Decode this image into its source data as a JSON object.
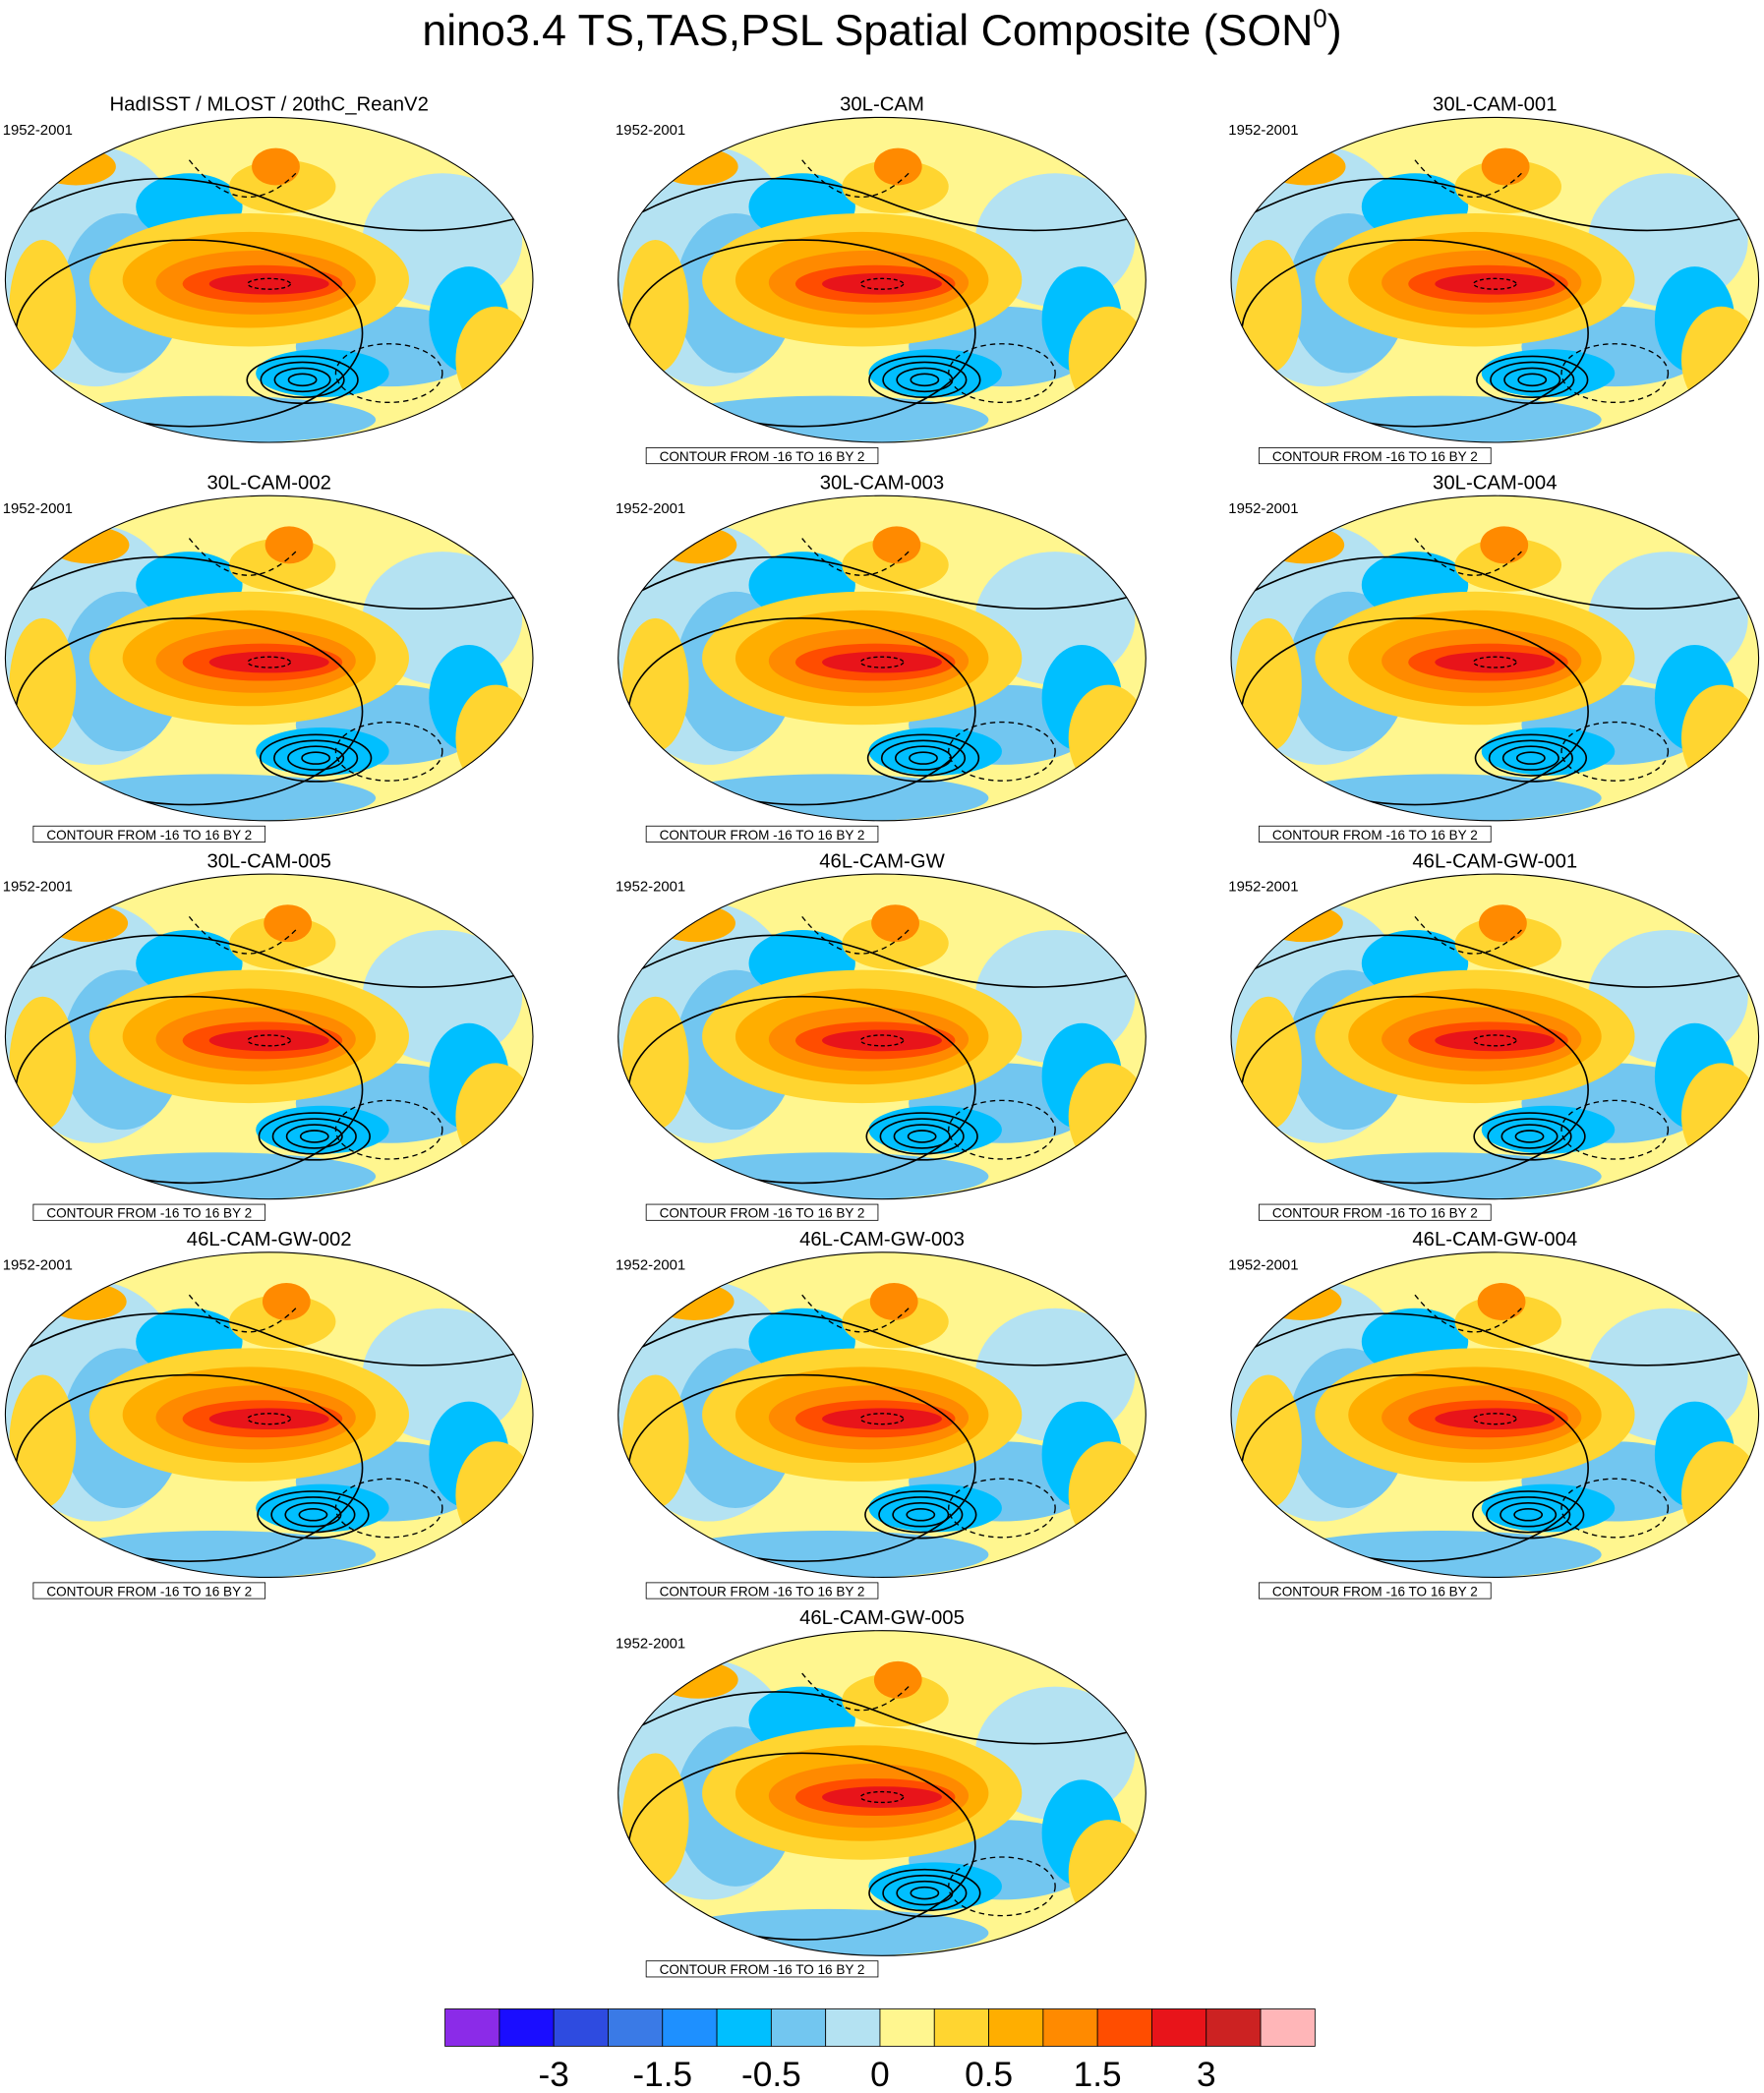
{
  "title": "nino3.4 TS,TAS,PSL Spatial Composite (SON",
  "title_superscript": "0",
  "title_end": ")",
  "panels": [
    {
      "title": "HadISST / MLOST / 20thC_ReanV2",
      "period": "1952-2001"
    },
    {
      "title": "30L-CAM",
      "period": "1952-2001",
      "contour_note": "CONTOUR FROM -16 TO 16 BY 2"
    },
    {
      "title": "30L-CAM-001",
      "period": "1952-2001",
      "contour_note": "CONTOUR FROM -16 TO 16 BY 2"
    },
    {
      "title": "30L-CAM-002",
      "period": "1952-2001",
      "contour_note": "CONTOUR FROM -16 TO 16 BY 2"
    },
    {
      "title": "30L-CAM-003",
      "period": "1952-2001",
      "contour_note": "CONTOUR FROM -16 TO 16 BY 2"
    },
    {
      "title": "30L-CAM-004",
      "period": "1952-2001",
      "contour_note": "CONTOUR FROM -16 TO 16 BY 2"
    },
    {
      "title": "30L-CAM-005",
      "period": "1952-2001",
      "contour_note": "CONTOUR FROM -16 TO 16 BY 2"
    },
    {
      "title": "46L-CAM-GW",
      "period": "1952-2001",
      "contour_note": "CONTOUR FROM -16 TO 16 BY 2"
    },
    {
      "title": "46L-CAM-GW-001",
      "period": "1952-2001",
      "contour_note": "CONTOUR FROM -16 TO 16 BY 2"
    },
    {
      "title": "46L-CAM-GW-002",
      "period": "1952-2001",
      "contour_note": "CONTOUR FROM -16 TO 16 BY 2"
    },
    {
      "title": "46L-CAM-GW-003",
      "period": "1952-2001",
      "contour_note": "CONTOUR FROM -16 TO 16 BY 2"
    },
    {
      "title": "46L-CAM-GW-004",
      "period": "1952-2001",
      "contour_note": "CONTOUR FROM -16 TO 16 BY 2"
    },
    {
      "title": "46L-CAM-GW-005",
      "period": "1952-2001",
      "contour_note": "CONTOUR FROM -16 TO 16 BY 2"
    }
  ],
  "colorbar": {
    "colors": [
      "#8b2be8",
      "#1a0dff",
      "#2e4be0",
      "#3a7ae6",
      "#1e90ff",
      "#00bfff",
      "#72c6f0",
      "#b4e2f2",
      "#fff68f",
      "#ffd530",
      "#ffae00",
      "#ff8a00",
      "#ff4d00",
      "#e8141a",
      "#cc2222",
      "#ffb6b8"
    ],
    "labels": [
      -3,
      -1.5,
      -0.5,
      0,
      0.5,
      1.5,
      3
    ]
  }
}
